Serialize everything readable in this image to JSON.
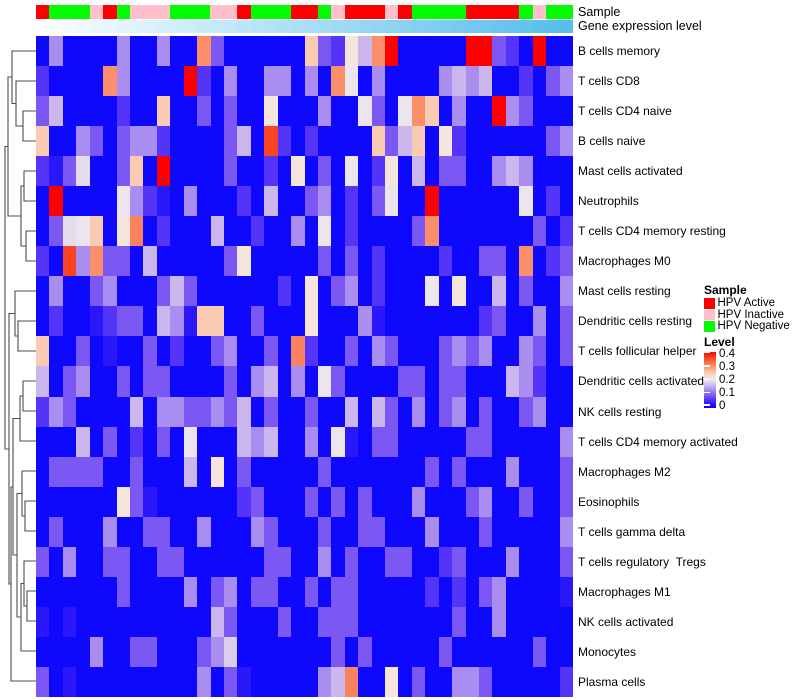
{
  "annotations": {
    "sample_label": "Sample",
    "gene_label": "Gene expression level",
    "gene_gradient": {
      "start_color": "#FDFEFF",
      "end_color": "#55BEEC"
    }
  },
  "legend": {
    "sample_title": "Sample",
    "sample_items": [
      {
        "label": "HPV Active",
        "color": "#FE0000"
      },
      {
        "label": "HPV Inactive",
        "color": "#FFC0CB"
      },
      {
        "label": "HPV Negative",
        "color": "#00FE00"
      }
    ],
    "level_title": "Level",
    "level_ticks": [
      "0.4",
      "0.3",
      "0.2",
      "0.1",
      "0"
    ]
  },
  "chart_data": {
    "type": "heatmap",
    "n_samples": 40,
    "value_range": [
      0,
      0.4
    ],
    "color_scale_anchors": {
      "values": [
        0.0,
        0.03,
        0.06,
        0.09,
        0.13,
        0.16,
        0.19,
        0.21,
        0.23,
        0.26,
        0.3,
        0.33,
        0.36,
        0.4
      ],
      "colors": [
        "#0000FE",
        "#2A18FB",
        "#5334F8",
        "#7B58F4",
        "#A98DF0",
        "#CBB6EE",
        "#E5DCEE",
        "#F2EDEC",
        "#F7DCCB",
        "#F9C3A6",
        "#FB8E6B",
        "#FA6A43",
        "#F94424",
        "#FE0000"
      ]
    },
    "sample_annotation": {
      "label": "Sample",
      "colors": {
        "A": "#FE0000",
        "I": "#FFC0CB",
        "N": "#00FE00"
      },
      "legend_names": {
        "A": "HPV Active",
        "I": "HPV Inactive",
        "N": "HPV Negative"
      },
      "groups": [
        "A",
        "N",
        "N",
        "N",
        "I",
        "A",
        "N",
        "I",
        "I",
        "I",
        "N",
        "N",
        "N",
        "I",
        "I",
        "A",
        "N",
        "N",
        "N",
        "A",
        "A",
        "N",
        "I",
        "A",
        "A",
        "A",
        "I",
        "A",
        "N",
        "N",
        "N",
        "N",
        "A",
        "A",
        "A",
        "A",
        "N",
        "I",
        "N",
        "N"
      ]
    },
    "rows": [
      "B cells memory",
      "T cells CD8",
      "T cells CD4 naive",
      "B cells naive",
      "Mast cells activated",
      "Neutrophils",
      "T cells CD4 memory resting",
      "Macrophages M0",
      "Mast cells resting",
      "Dendritic cells resting",
      "T cells follicular helper",
      "Dendritic cells activated",
      "NK cells resting",
      "T cells CD4 memory activated",
      "Macrophages M2",
      "Eosinophils",
      "T cells gamma delta",
      "T cells regulatory  Tregs",
      "Macrophages M1",
      "NK cells activated",
      "Monocytes",
      "Plasma cells"
    ],
    "matrix": [
      [
        0.01,
        0.13,
        0.01,
        0.01,
        0.01,
        0.01,
        0.13,
        0.01,
        0.01,
        0.13,
        0.01,
        0.01,
        0.3,
        0.09,
        0.01,
        0.01,
        0.01,
        0.01,
        0.01,
        0.01,
        0.25,
        0.09,
        0.06,
        0.22,
        0.16,
        0.3,
        0.4,
        0.01,
        0.01,
        0.01,
        0.01,
        0.01,
        0.4,
        0.4,
        0.09,
        0.06,
        0.01,
        0.4,
        0.01,
        0.01
      ],
      [
        0.06,
        0.01,
        0.01,
        0.01,
        0.01,
        0.3,
        0.13,
        0.01,
        0.01,
        0.01,
        0.01,
        0.4,
        0.06,
        0.01,
        0.13,
        0.01,
        0.01,
        0.13,
        0.13,
        0.01,
        0.13,
        0.01,
        0.3,
        0.2,
        0.01,
        0.13,
        0.01,
        0.01,
        0.01,
        0.01,
        0.13,
        0.16,
        0.13,
        0.16,
        0.01,
        0.01,
        0.06,
        0.01,
        0.09,
        0.13
      ],
      [
        0.09,
        0.16,
        0.01,
        0.01,
        0.01,
        0.01,
        0.06,
        0.01,
        0.01,
        0.25,
        0.01,
        0.01,
        0.09,
        0.01,
        0.09,
        0.01,
        0.01,
        0.22,
        0.01,
        0.01,
        0.01,
        0.13,
        0.01,
        0.01,
        0.2,
        0.09,
        0.01,
        0.2,
        0.3,
        0.25,
        0.01,
        0.13,
        0.01,
        0.01,
        0.4,
        0.13,
        0.09,
        0.01,
        0.01,
        0.01
      ],
      [
        0.25,
        0.01,
        0.01,
        0.13,
        0.09,
        0.01,
        0.09,
        0.13,
        0.13,
        0.06,
        0.01,
        0.01,
        0.01,
        0.01,
        0.09,
        0.16,
        0.01,
        0.36,
        0.06,
        0.01,
        0.06,
        0.01,
        0.01,
        0.01,
        0.01,
        0.25,
        0.09,
        0.16,
        0.25,
        0.01,
        0.22,
        0.06,
        0.01,
        0.01,
        0.01,
        0.01,
        0.01,
        0.01,
        0.09,
        0.13
      ],
      [
        0.06,
        0.03,
        0.09,
        0.19,
        0.01,
        0.01,
        0.09,
        0.25,
        0.01,
        0.4,
        0.01,
        0.01,
        0.01,
        0.01,
        0.09,
        0.01,
        0.01,
        0.06,
        0.01,
        0.22,
        0.01,
        0.09,
        0.01,
        0.2,
        0.01,
        0.06,
        0.22,
        0.01,
        0.16,
        0.01,
        0.09,
        0.09,
        0.01,
        0.01,
        0.13,
        0.16,
        0.13,
        0.01,
        0.01,
        0.01
      ],
      [
        0.01,
        0.4,
        0.01,
        0.01,
        0.01,
        0.01,
        0.2,
        0.13,
        0.06,
        0.03,
        0.01,
        0.13,
        0.01,
        0.01,
        0.01,
        0.06,
        0.01,
        0.16,
        0.01,
        0.01,
        0.09,
        0.13,
        0.01,
        0.06,
        0.01,
        0.09,
        0.2,
        0.01,
        0.01,
        0.4,
        0.01,
        0.01,
        0.01,
        0.01,
        0.01,
        0.01,
        0.2,
        0.01,
        0.06,
        0.01
      ],
      [
        0.01,
        0.09,
        0.19,
        0.2,
        0.25,
        0.01,
        0.22,
        0.31,
        0.01,
        0.06,
        0.01,
        0.01,
        0.01,
        0.16,
        0.01,
        0.01,
        0.06,
        0.01,
        0.01,
        0.13,
        0.01,
        0.2,
        0.01,
        0.06,
        0.01,
        0.01,
        0.01,
        0.01,
        0.09,
        0.3,
        0.01,
        0.01,
        0.01,
        0.01,
        0.01,
        0.01,
        0.01,
        0.09,
        0.01,
        0.06
      ],
      [
        0.06,
        0.01,
        0.36,
        0.13,
        0.3,
        0.09,
        0.09,
        0.01,
        0.16,
        0.01,
        0.01,
        0.01,
        0.01,
        0.01,
        0.09,
        0.22,
        0.01,
        0.01,
        0.01,
        0.01,
        0.01,
        0.09,
        0.01,
        0.09,
        0.01,
        0.06,
        0.01,
        0.01,
        0.01,
        0.01,
        0.06,
        0.01,
        0.01,
        0.09,
        0.09,
        0.01,
        0.3,
        0.01,
        0.06,
        0.09
      ],
      [
        0.01,
        0.13,
        0.01,
        0.01,
        0.09,
        0.13,
        0.01,
        0.01,
        0.01,
        0.09,
        0.16,
        0.09,
        0.01,
        0.01,
        0.01,
        0.01,
        0.01,
        0.01,
        0.06,
        0.01,
        0.22,
        0.01,
        0.09,
        0.13,
        0.01,
        0.06,
        0.01,
        0.01,
        0.01,
        0.2,
        0.01,
        0.22,
        0.01,
        0.01,
        0.16,
        0.01,
        0.09,
        0.01,
        0.01,
        0.13
      ],
      [
        0.01,
        0.06,
        0.01,
        0.01,
        0.03,
        0.06,
        0.09,
        0.09,
        0.01,
        0.16,
        0.13,
        0.03,
        0.25,
        0.25,
        0.01,
        0.01,
        0.09,
        0.01,
        0.01,
        0.01,
        0.22,
        0.01,
        0.01,
        0.01,
        0.13,
        0.03,
        0.01,
        0.01,
        0.01,
        0.01,
        0.01,
        0.01,
        0.01,
        0.06,
        0.09,
        0.01,
        0.01,
        0.13,
        0.01,
        0.09
      ],
      [
        0.25,
        0.01,
        0.01,
        0.09,
        0.01,
        0.03,
        0.01,
        0.01,
        0.09,
        0.01,
        0.06,
        0.01,
        0.01,
        0.09,
        0.13,
        0.01,
        0.01,
        0.09,
        0.01,
        0.31,
        0.06,
        0.01,
        0.01,
        0.09,
        0.01,
        0.13,
        0.09,
        0.01,
        0.01,
        0.01,
        0.09,
        0.13,
        0.09,
        0.13,
        0.01,
        0.01,
        0.13,
        0.09,
        0.01,
        0.09
      ],
      [
        0.16,
        0.01,
        0.09,
        0.13,
        0.01,
        0.01,
        0.09,
        0.01,
        0.09,
        0.09,
        0.01,
        0.01,
        0.01,
        0.01,
        0.09,
        0.01,
        0.13,
        0.16,
        0.01,
        0.13,
        0.01,
        0.2,
        0.09,
        0.01,
        0.01,
        0.01,
        0.01,
        0.09,
        0.09,
        0.01,
        0.09,
        0.09,
        0.01,
        0.01,
        0.01,
        0.16,
        0.13,
        0.06,
        0.01,
        0.01
      ],
      [
        0.06,
        0.13,
        0.09,
        0.01,
        0.01,
        0.01,
        0.01,
        0.16,
        0.01,
        0.13,
        0.13,
        0.09,
        0.09,
        0.13,
        0.09,
        0.16,
        0.01,
        0.09,
        0.01,
        0.01,
        0.09,
        0.01,
        0.01,
        0.16,
        0.01,
        0.16,
        0.09,
        0.01,
        0.13,
        0.01,
        0.09,
        0.13,
        0.01,
        0.09,
        0.01,
        0.01,
        0.09,
        0.13,
        0.01,
        0.01
      ],
      [
        0.01,
        0.01,
        0.01,
        0.16,
        0.01,
        0.09,
        0.01,
        0.06,
        0.01,
        0.09,
        0.01,
        0.2,
        0.01,
        0.01,
        0.01,
        0.16,
        0.13,
        0.16,
        0.01,
        0.01,
        0.13,
        0.01,
        0.2,
        0.03,
        0.01,
        0.09,
        0.09,
        0.01,
        0.01,
        0.01,
        0.01,
        0.01,
        0.09,
        0.09,
        0.01,
        0.01,
        0.01,
        0.01,
        0.01,
        0.13
      ],
      [
        0.01,
        0.09,
        0.09,
        0.09,
        0.09,
        0.01,
        0.01,
        0.09,
        0.01,
        0.01,
        0.01,
        0.16,
        0.01,
        0.22,
        0.01,
        0.09,
        0.01,
        0.01,
        0.01,
        0.01,
        0.01,
        0.09,
        0.01,
        0.01,
        0.01,
        0.01,
        0.01,
        0.01,
        0.01,
        0.09,
        0.01,
        0.09,
        0.01,
        0.01,
        0.01,
        0.13,
        0.01,
        0.01,
        0.01,
        0.09
      ],
      [
        0.01,
        0.01,
        0.01,
        0.01,
        0.01,
        0.01,
        0.22,
        0.09,
        0.03,
        0.01,
        0.01,
        0.01,
        0.01,
        0.01,
        0.01,
        0.06,
        0.09,
        0.01,
        0.01,
        0.01,
        0.09,
        0.01,
        0.09,
        0.01,
        0.09,
        0.01,
        0.01,
        0.01,
        0.13,
        0.01,
        0.01,
        0.01,
        0.09,
        0.13,
        0.01,
        0.01,
        0.09,
        0.01,
        0.01,
        0.09
      ],
      [
        0.01,
        0.09,
        0.01,
        0.01,
        0.01,
        0.13,
        0.01,
        0.01,
        0.09,
        0.09,
        0.01,
        0.01,
        0.13,
        0.01,
        0.01,
        0.01,
        0.13,
        0.09,
        0.01,
        0.01,
        0.01,
        0.09,
        0.01,
        0.01,
        0.09,
        0.09,
        0.01,
        0.01,
        0.01,
        0.13,
        0.01,
        0.01,
        0.01,
        0.09,
        0.01,
        0.01,
        0.01,
        0.01,
        0.01,
        0.13
      ],
      [
        0.09,
        0.01,
        0.13,
        0.01,
        0.01,
        0.09,
        0.09,
        0.01,
        0.01,
        0.09,
        0.09,
        0.01,
        0.01,
        0.01,
        0.01,
        0.01,
        0.01,
        0.09,
        0.09,
        0.01,
        0.01,
        0.13,
        0.01,
        0.09,
        0.01,
        0.01,
        0.09,
        0.09,
        0.01,
        0.01,
        0.06,
        0.09,
        0.01,
        0.01,
        0.01,
        0.13,
        0.01,
        0.01,
        0.01,
        0.09
      ],
      [
        0.01,
        0.01,
        0.01,
        0.01,
        0.01,
        0.01,
        0.09,
        0.01,
        0.01,
        0.01,
        0.01,
        0.13,
        0.01,
        0.09,
        0.13,
        0.01,
        0.09,
        0.09,
        0.01,
        0.01,
        0.09,
        0.01,
        0.09,
        0.09,
        0.01,
        0.01,
        0.01,
        0.01,
        0.01,
        0.06,
        0.01,
        0.06,
        0.01,
        0.09,
        0.13,
        0.01,
        0.01,
        0.01,
        0.01,
        0.03
      ],
      [
        0.03,
        0.01,
        0.03,
        0.01,
        0.01,
        0.01,
        0.01,
        0.01,
        0.01,
        0.01,
        0.01,
        0.01,
        0.01,
        0.16,
        0.09,
        0.01,
        0.01,
        0.01,
        0.09,
        0.01,
        0.01,
        0.09,
        0.09,
        0.09,
        0.01,
        0.01,
        0.01,
        0.01,
        0.01,
        0.01,
        0.01,
        0.09,
        0.01,
        0.01,
        0.13,
        0.01,
        0.01,
        0.01,
        0.01,
        0.01
      ],
      [
        0.01,
        0.01,
        0.01,
        0.01,
        0.13,
        0.01,
        0.01,
        0.09,
        0.09,
        0.01,
        0.01,
        0.01,
        0.09,
        0.13,
        0.18,
        0.01,
        0.01,
        0.01,
        0.01,
        0.01,
        0.01,
        0.01,
        0.09,
        0.01,
        0.09,
        0.01,
        0.01,
        0.01,
        0.01,
        0.01,
        0.09,
        0.01,
        0.01,
        0.01,
        0.01,
        0.01,
        0.01,
        0.09,
        0.01,
        0.01
      ],
      [
        0.09,
        0.01,
        0.03,
        0.01,
        0.01,
        0.01,
        0.01,
        0.01,
        0.01,
        0.01,
        0.01,
        0.01,
        0.13,
        0.01,
        0.09,
        0.03,
        0.01,
        0.01,
        0.01,
        0.01,
        0.01,
        0.13,
        0.16,
        0.31,
        0.01,
        0.01,
        0.22,
        0.01,
        0.09,
        0.01,
        0.01,
        0.13,
        0.13,
        0.09,
        0.01,
        0.01,
        0.01,
        0.01,
        0.01,
        0.06
      ]
    ],
    "dendrogram": {
      "line_color": "#4D4D4D",
      "brackets": [
        [
          23,
          75,
          36,
          105,
          36
        ],
        [
          16,
          45,
          36,
          90,
          23
        ],
        [
          12,
          15,
          36,
          67.5,
          16
        ],
        [
          24,
          135,
          36,
          165,
          36
        ],
        [
          26,
          195,
          36,
          225,
          36
        ],
        [
          21,
          150,
          24,
          210,
          26
        ],
        [
          8,
          41,
          12,
          180,
          21
        ],
        [
          18,
          285,
          36,
          315,
          36
        ],
        [
          15,
          255,
          36,
          300,
          18
        ],
        [
          23,
          345,
          36,
          375,
          36
        ],
        [
          20,
          360,
          23,
          405,
          36
        ],
        [
          25,
          465,
          36,
          495,
          36
        ],
        [
          22,
          435,
          36,
          480,
          25
        ],
        [
          27,
          555,
          36,
          585,
          36
        ],
        [
          24,
          525,
          36,
          570,
          27
        ],
        [
          21,
          547.5,
          24,
          615,
          36
        ],
        [
          17,
          457.5,
          22,
          581,
          21
        ],
        [
          13,
          382.5,
          20,
          519,
          17
        ],
        [
          11,
          451,
          13,
          645,
          36
        ],
        [
          9,
          277.5,
          15,
          548,
          11
        ],
        [
          5,
          110.5,
          8,
          413,
          9
        ]
      ]
    }
  }
}
